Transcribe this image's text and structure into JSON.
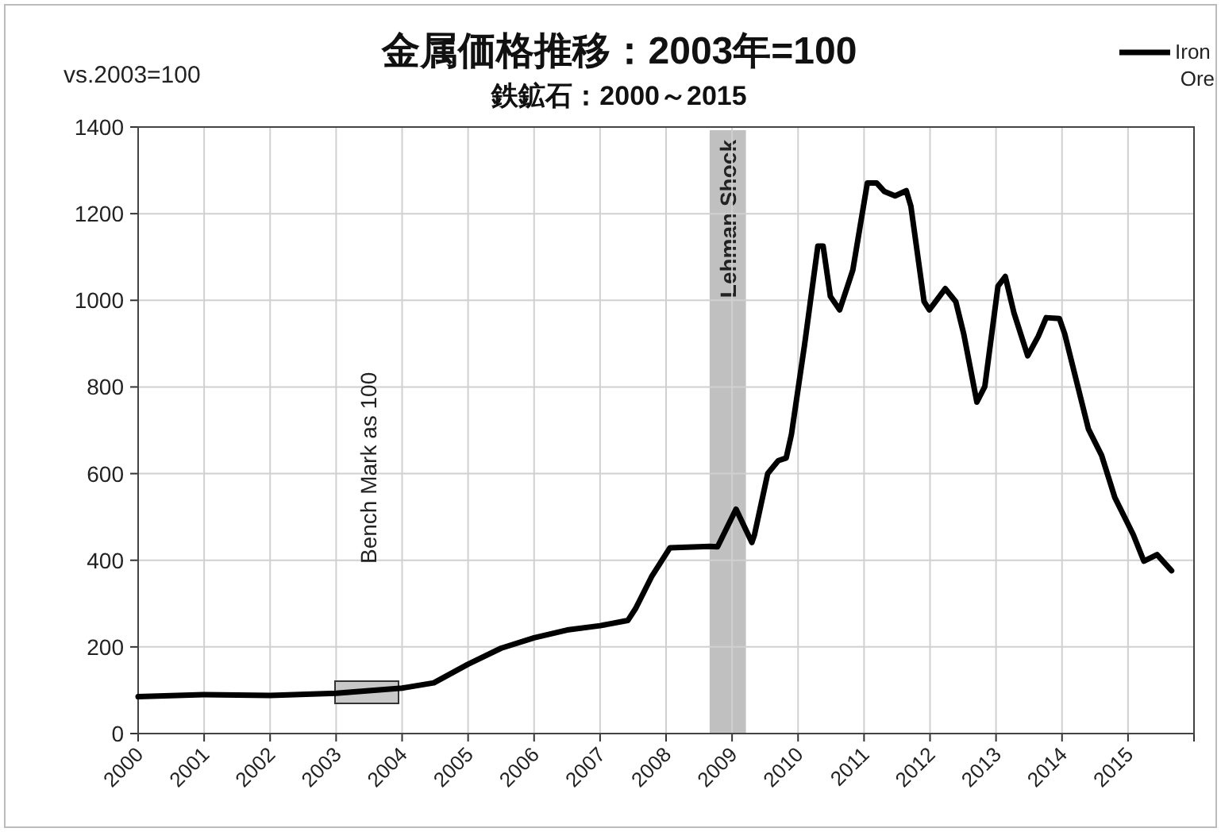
{
  "chart_data": {
    "type": "line",
    "title": "金属価格推移：2003年=100",
    "subtitle": "鉄鉱石：2000～2015",
    "ylabel": "vs.2003=100",
    "xlim": [
      2000,
      2016
    ],
    "ylim": [
      0,
      1400
    ],
    "xticks": [
      2000,
      2001,
      2002,
      2003,
      2004,
      2005,
      2006,
      2007,
      2008,
      2009,
      2010,
      2011,
      2012,
      2013,
      2014,
      2015,
      {
        "value": 2016,
        "label": null
      }
    ],
    "yticks": [
      0,
      200,
      400,
      600,
      800,
      1000,
      1200,
      1400
    ],
    "grid": true,
    "legend": "top right",
    "bands": [
      {
        "axis": "x",
        "from": 2008.66,
        "to": 2009.21,
        "label": "Lehman Shock",
        "color": "#c0c0c0"
      }
    ],
    "annotations": [
      "Bench  Mark as 100"
    ],
    "series": [
      {
        "name": "Iron Ore",
        "color": "#000000",
        "x": [
          2000.0,
          2001.0,
          2002.0,
          2003.0,
          2004.0,
          2004.48,
          2005.0,
          2005.5,
          2006.0,
          2006.5,
          2007.0,
          2007.42,
          2007.54,
          2007.78,
          2008.06,
          2008.66,
          2008.78,
          2009.06,
          2009.3,
          2009.34,
          2009.54,
          2009.7,
          2009.82,
          2009.9,
          2010.1,
          2010.3,
          2010.38,
          2010.49,
          2010.63,
          2010.75,
          2010.83,
          2011.05,
          2011.19,
          2011.31,
          2011.47,
          2011.64,
          2011.71,
          2011.91,
          2011.99,
          2012.23,
          2012.39,
          2012.51,
          2012.71,
          2012.83,
          2013.03,
          2013.14,
          2013.27,
          2013.48,
          2013.64,
          2013.76,
          2013.96,
          2014.04,
          2014.4,
          2014.6,
          2014.8,
          2015.08,
          2015.24,
          2015.44,
          2015.66
        ],
        "values": [
          85,
          90,
          88,
          93,
          105,
          117,
          160,
          197,
          221,
          239,
          249,
          261,
          289,
          362,
          429,
          432,
          431,
          518,
          441,
          459,
          600,
          630,
          636,
          691,
          899,
          1125,
          1125,
          1009,
          978,
          1033,
          1070,
          1271,
          1271,
          1251,
          1241,
          1253,
          1217,
          997,
          978,
          1027,
          997,
          923,
          765,
          801,
          1033,
          1055,
          972,
          872,
          917,
          960,
          958,
          923,
          703,
          642,
          545,
          459,
          398,
          413,
          376
        ]
      }
    ]
  }
}
